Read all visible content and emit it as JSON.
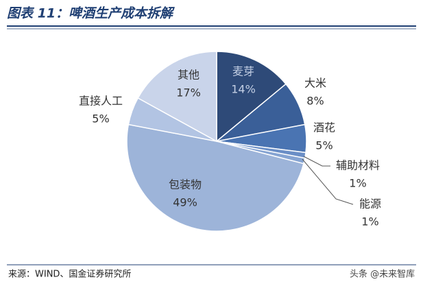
{
  "chart_data": {
    "type": "pie",
    "title": "图表 11：啤酒生产成本拆解",
    "categories": [
      "麦芽",
      "大米",
      "酒花",
      "辅助材料",
      "能源",
      "包装物",
      "直接人工",
      "其他"
    ],
    "values": [
      14,
      8,
      5,
      1,
      1,
      49,
      5,
      17
    ],
    "value_labels": [
      "14%",
      "8%",
      "5%",
      "1%",
      "1%",
      "49%",
      "5%",
      "17%"
    ],
    "colors": [
      "#2e4a78",
      "#3a5f98",
      "#4a74b2",
      "#6a8ec6",
      "#86a4d2",
      "#9db4d9",
      "#b2c4e3",
      "#c9d4ea"
    ],
    "source": "来源：WIND、国金证券研究所",
    "watermark": "头条 @未来智库"
  }
}
